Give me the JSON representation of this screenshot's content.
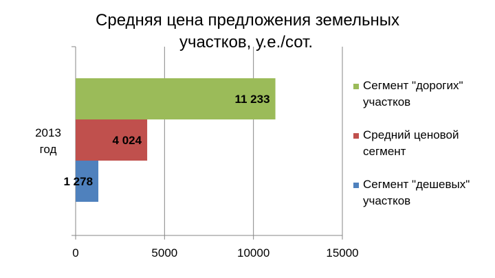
{
  "chart_data": {
    "type": "bar",
    "orientation": "horizontal",
    "title": "Средняя цена предложения земельных участков, у.е./сот.",
    "title_lines": [
      "Средняя цена предложения земельных",
      "участков, у.е./сот."
    ],
    "categories": [
      "2013 год"
    ],
    "category_lines": [
      "2013",
      "год"
    ],
    "series": [
      {
        "name": "Сегмент \"дорогих\" участков",
        "name_lines": [
          "Сегмент \"дорогих\"",
          "участков"
        ],
        "values": [
          11233
        ],
        "label": "11 233",
        "color": "#9BBB59"
      },
      {
        "name": "Средний ценовой сегмент",
        "name_lines": [
          "Средний ценовой",
          "сегмент"
        ],
        "values": [
          4024
        ],
        "label": "4 024",
        "color": "#C0504D"
      },
      {
        "name": "Сегмент \"дешевых\" участков",
        "name_lines": [
          "Сегмент \"дешевых\"",
          "участков"
        ],
        "values": [
          1278
        ],
        "label": "1 278",
        "color": "#4F81BD"
      }
    ],
    "xlim": [
      0,
      15000
    ],
    "xticks": [
      "0",
      "5000",
      "10000",
      "15000"
    ],
    "grid": true,
    "legend_position": "right"
  }
}
